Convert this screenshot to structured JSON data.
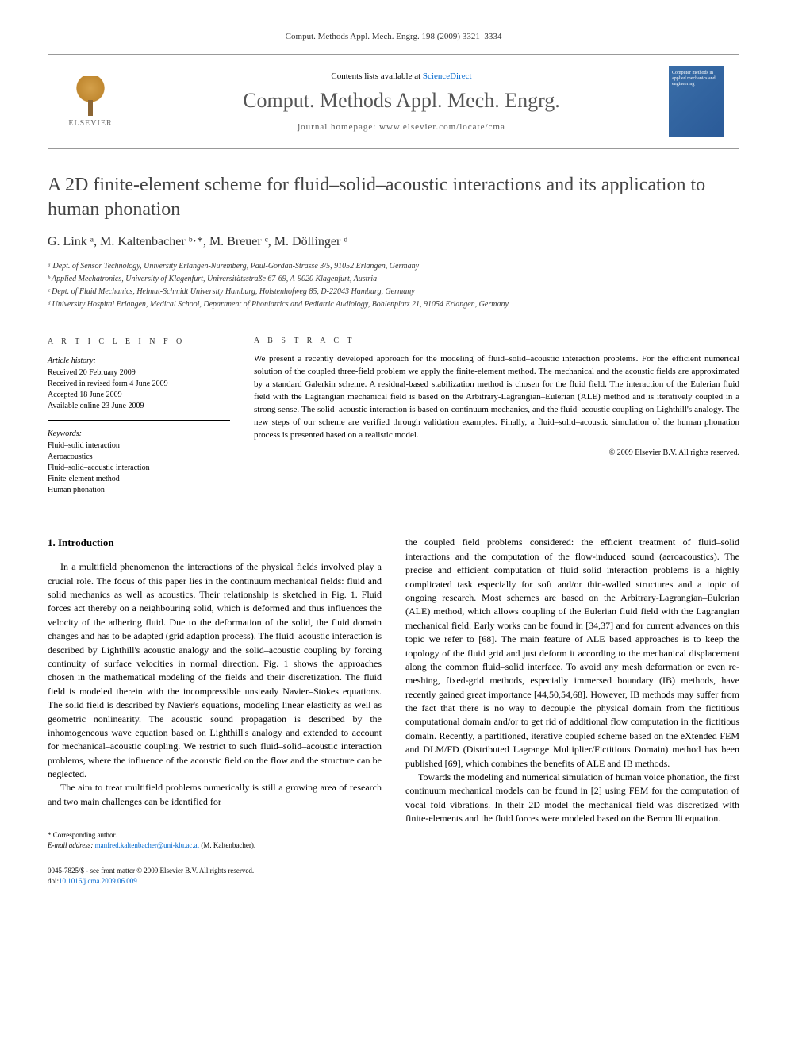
{
  "header": {
    "citation": "Comput. Methods Appl. Mech. Engrg. 198 (2009) 3321–3334"
  },
  "top_box": {
    "publisher": "ELSEVIER",
    "contents_prefix": "Contents lists available at ",
    "contents_link": "ScienceDirect",
    "journal_name": "Comput. Methods Appl. Mech. Engrg.",
    "homepage_label": "journal homepage: www.elsevier.com/locate/cma",
    "cover_text": "Computer methods in applied mechanics and engineering"
  },
  "title": "A 2D finite-element scheme for fluid–solid–acoustic interactions and its application to human phonation",
  "authors_html": "G. Link ᵃ, M. Kaltenbacher ᵇ·*, M. Breuer ᶜ, M. Döllinger ᵈ",
  "affiliations": [
    "ᵃ Dept. of Sensor Technology, University Erlangen-Nuremberg, Paul-Gordan-Strasse 3/5, 91052 Erlangen, Germany",
    "ᵇ Applied Mechatronics, University of Klagenfurt, Universitätsstraße 67-69, A-9020 Klagenfurt, Austria",
    "ᶜ Dept. of Fluid Mechanics, Helmut-Schmidt University Hamburg, Holstenhofweg 85, D-22043 Hamburg, Germany",
    "ᵈ University Hospital Erlangen, Medical School, Department of Phoniatrics and Pediatric Audiology, Bohlenplatz 21, 91054 Erlangen, Germany"
  ],
  "article_info": {
    "label": "A R T I C L E   I N F O",
    "history_label": "Article history:",
    "history": [
      "Received 20 February 2009",
      "Received in revised form 4 June 2009",
      "Accepted 18 June 2009",
      "Available online 23 June 2009"
    ],
    "keywords_label": "Keywords:",
    "keywords": [
      "Fluid–solid interaction",
      "Aeroacoustics",
      "Fluid–solid–acoustic interaction",
      "Finite-element method",
      "Human phonation"
    ]
  },
  "abstract": {
    "label": "A B S T R A C T",
    "text": "We present a recently developed approach for the modeling of fluid–solid–acoustic interaction problems. For the efficient numerical solution of the coupled three-field problem we apply the finite-element method. The mechanical and the acoustic fields are approximated by a standard Galerkin scheme. A residual-based stabilization method is chosen for the fluid field. The interaction of the Eulerian fluid field with the Lagrangian mechanical field is based on the Arbitrary-Lagrangian–Eulerian (ALE) method and is iteratively coupled in a strong sense. The solid–acoustic interaction is based on continuum mechanics, and the fluid–acoustic coupling on Lighthill's analogy. The new steps of our scheme are verified through validation examples. Finally, a fluid–solid–acoustic simulation of the human phonation process is presented based on a realistic model.",
    "copyright": "© 2009 Elsevier B.V. All rights reserved."
  },
  "body": {
    "section_heading": "1. Introduction",
    "col1_p1": "In a multifield phenomenon the interactions of the physical fields involved play a crucial role. The focus of this paper lies in the continuum mechanical fields: fluid and solid mechanics as well as acoustics. Their relationship is sketched in Fig. 1. Fluid forces act thereby on a neighbouring solid, which is deformed and thus influences the velocity of the adhering fluid. Due to the deformation of the solid, the fluid domain changes and has to be adapted (grid adaption process). The fluid–acoustic interaction is described by Lighthill's acoustic analogy and the solid–acoustic coupling by forcing continuity of surface velocities in normal direction. Fig. 1 shows the approaches chosen in the mathematical modeling of the fields and their discretization. The fluid field is modeled therein with the incompressible unsteady Navier–Stokes equations. The solid field is described by Navier's equations, modeling linear elasticity as well as geometric nonlinearity. The acoustic sound propagation is described by the inhomogeneous wave equation based on Lighthill's analogy and extended to account for mechanical–acoustic coupling. We restrict to such fluid–solid–acoustic interaction problems, where the influence of the acoustic field on the flow and the structure can be neglected.",
    "col1_p2": "The aim to treat multifield problems numerically is still a growing area of research and two main challenges can be identified for",
    "col2_p1": "the coupled field problems considered: the efficient treatment of fluid–solid interactions and the computation of the flow-induced sound (aeroacoustics). The precise and efficient computation of fluid–solid interaction problems is a highly complicated task especially for soft and/or thin-walled structures and a topic of ongoing research. Most schemes are based on the Arbitrary-Lagrangian–Eulerian (ALE) method, which allows coupling of the Eulerian fluid field with the Lagrangian mechanical field. Early works can be found in [34,37] and for current advances on this topic we refer to [68]. The main feature of ALE based approaches is to keep the topology of the fluid grid and just deform it according to the mechanical displacement along the common fluid–solid interface. To avoid any mesh deformation or even re-meshing, fixed-grid methods, especially immersed boundary (IB) methods, have recently gained great importance [44,50,54,68]. However, IB methods may suffer from the fact that there is no way to decouple the physical domain from the fictitious computational domain and/or to get rid of additional flow computation in the fictitious domain. Recently, a partitioned, iterative coupled scheme based on the eXtended FEM and DLM/FD (Distributed Lagrange Multiplier/Fictitious Domain) method has been published [69], which combines the benefits of ALE and IB methods.",
    "col2_p2": "Towards the modeling and numerical simulation of human voice phonation, the first continuum mechanical models can be found in [2] using FEM for the computation of vocal fold vibrations. In their 2D model the mechanical field was discretized with finite-elements and the fluid forces were modeled based on the Bernoulli equation."
  },
  "footnote": {
    "corr": "* Corresponding author.",
    "email_label": "E-mail address: ",
    "email": "manfred.kaltenbacher@uni-klu.ac.at",
    "email_who": " (M. Kaltenbacher)."
  },
  "footer": {
    "line1": "0045-7825/$ - see front matter © 2009 Elsevier B.V. All rights reserved.",
    "doi_label": "doi:",
    "doi": "10.1016/j.cma.2009.06.009"
  },
  "refs": {
    "fig1": "Fig. 1",
    "r34_37": "[34,37]",
    "r68": "[68]",
    "r44_50_54_68": "[44,50,54,68]",
    "r69": "[69]",
    "r2": "[2]"
  }
}
